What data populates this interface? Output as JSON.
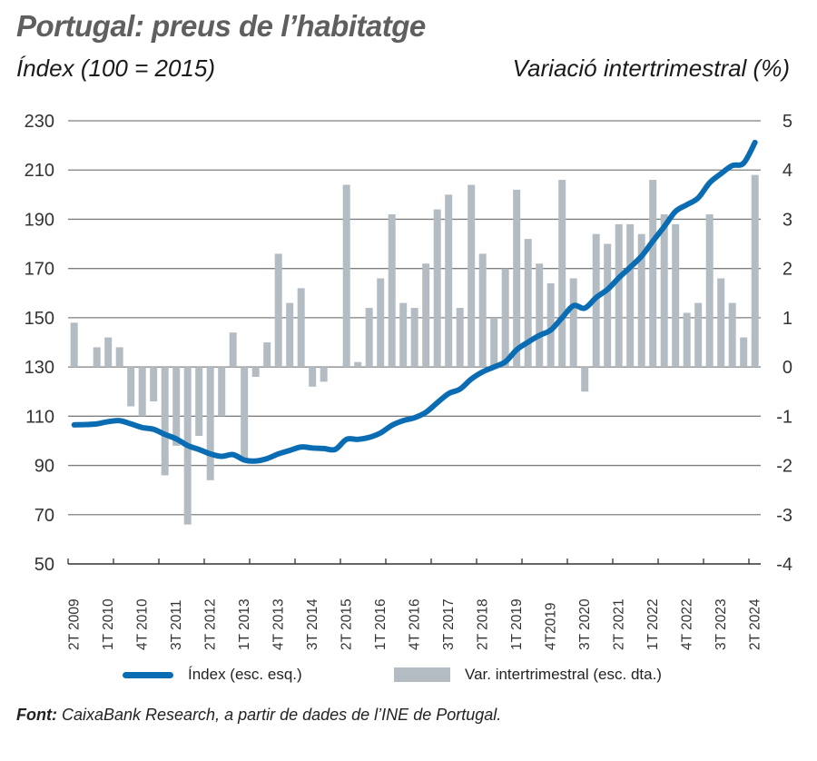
{
  "header": {
    "title": "Portugal: preus de l’habitatge",
    "left_axis_title": "Índex (100 = 2015)",
    "right_axis_title": "Variació intertrimestral (%)"
  },
  "legend": {
    "line_label": "Índex (esc. esq.)",
    "bar_label": "Var. intertrimestral (esc. dta.)"
  },
  "source": {
    "label": "Font:",
    "text": " CaixaBank Research, a partir de dades de l’INE de Portugal."
  },
  "colors": {
    "line": "#0a6cb3",
    "bar": "#b3bcc2",
    "grid": "#7f7f7f",
    "axis": "#333333"
  },
  "chart_data": {
    "type": "bar+line",
    "title": "Portugal: preus de l’habitatge",
    "x": [
      "2T 2009",
      "3T 2009",
      "4T 2009",
      "1T 2010",
      "2T 2010",
      "3T 2010",
      "4T 2010",
      "1T 2011",
      "2T 2011",
      "3T 2011",
      "4T 2011",
      "1T 2012",
      "2T 2012",
      "3T 2012",
      "4T 2012",
      "1T 2013",
      "2T 2013",
      "3T 2013",
      "4T 2013",
      "1T 2014",
      "2T 2014",
      "3T 2014",
      "4T 2014",
      "1T 2015",
      "2T 2015",
      "3T 2015",
      "4T 2015",
      "1T 2016",
      "2T 2016",
      "3T 2016",
      "4T 2016",
      "1T 2017",
      "2T 2017",
      "3T 2017",
      "4T 2017",
      "1T 2018",
      "2T 2018",
      "3T 2018",
      "4T 2018",
      "1T 2019",
      "2T 2019",
      "3T 2019",
      "4T2019",
      "1T 2020",
      "2T 2020",
      "3T 2020",
      "4T 2020",
      "1T 2021",
      "2T 2021",
      "3T 2021",
      "4T 2021",
      "1T 2022",
      "2T 2022",
      "3T 2022",
      "4T 2022",
      "1T 2023",
      "2T 2023",
      "3T 2023",
      "4T 2023",
      "1T 2024",
      "2T 2024"
    ],
    "x_tick_labels": [
      "2T 2009",
      "1T 2010",
      "4T 2010",
      "3T 2011",
      "2T 2012",
      "1T 2013",
      "4T 2013",
      "3T 2014",
      "2T 2015",
      "1T 2016",
      "4T 2016",
      "3T 2017",
      "2T 2018",
      "1T 2019",
      "4T2019",
      "3T 2020",
      "2T 2021",
      "1T 2022",
      "4T 2022",
      "3T 2023",
      "2T 2024"
    ],
    "series": [
      {
        "name": "Índex (esc. esq.)",
        "type": "line",
        "axis": "left",
        "values": [
          106.5,
          106.6,
          106.9,
          107.8,
          108.2,
          106.9,
          105.4,
          104.7,
          102.6,
          100.8,
          98.1,
          96.5,
          94.7,
          93.7,
          94.4,
          92.2,
          91.8,
          92.8,
          94.7,
          96.1,
          97.5,
          97.1,
          96.9,
          96.5,
          100.6,
          100.6,
          101.4,
          103.2,
          106.3,
          108.2,
          109.4,
          111.6,
          115.5,
          119.2,
          121.0,
          125.1,
          128.0,
          130.0,
          132.1,
          137.0,
          140.1,
          142.8,
          145.0,
          150.0,
          154.9,
          153.9,
          158.2,
          161.5,
          166.2,
          170.5,
          175.0,
          181.1,
          187.0,
          193.2,
          195.9,
          198.7,
          204.8,
          208.5,
          211.8,
          212.8,
          221.2
        ]
      },
      {
        "name": "Var. intertrimestral (esc. dta.)",
        "type": "bar",
        "axis": "right",
        "values": [
          0.9,
          0.0,
          0.4,
          0.6,
          0.4,
          -0.8,
          -1.0,
          -0.7,
          -2.2,
          -1.6,
          -3.2,
          -1.4,
          -2.3,
          -1.0,
          0.7,
          -1.9,
          -0.2,
          0.5,
          2.3,
          1.3,
          1.6,
          -0.4,
          -0.3,
          0.0,
          3.7,
          0.1,
          1.2,
          1.8,
          3.1,
          1.3,
          1.2,
          2.1,
          3.2,
          3.5,
          1.2,
          3.7,
          2.3,
          1.0,
          2.0,
          3.6,
          2.6,
          2.1,
          1.7,
          3.8,
          1.8,
          -0.5,
          2.7,
          2.5,
          2.9,
          2.9,
          2.7,
          3.8,
          3.1,
          2.9,
          1.1,
          1.3,
          3.1,
          1.8,
          1.3,
          0.6,
          3.9
        ]
      }
    ],
    "ylabel_left": "Índex (100 = 2015)",
    "ylabel_right": "Variació intertrimestral (%)",
    "ylim_left": [
      50,
      230
    ],
    "yticks_left": [
      50,
      70,
      90,
      110,
      130,
      150,
      170,
      190,
      210,
      230
    ],
    "ylim_right": [
      -4,
      5
    ],
    "yticks_right": [
      -4,
      -3,
      -2,
      -1,
      0,
      1,
      2,
      3,
      4,
      5
    ],
    "grid": true,
    "legend_position": "bottom"
  }
}
